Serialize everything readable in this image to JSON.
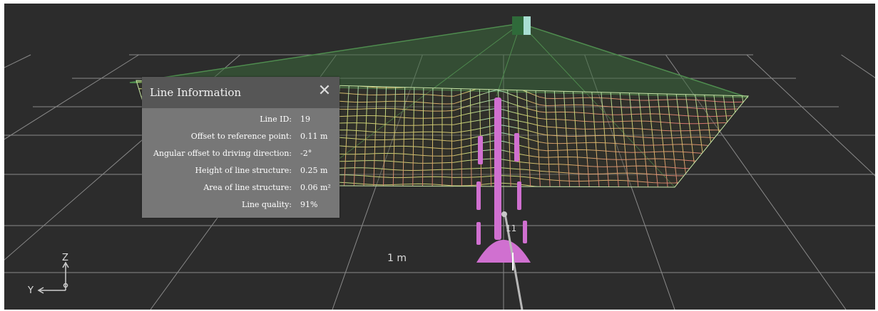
{
  "panel": {
    "title": "Line Information",
    "close_symbol": "✕",
    "rows": [
      {
        "label": "Line ID:",
        "value": "19"
      },
      {
        "label": "Offset to reference point:",
        "value": "0.11 m"
      },
      {
        "label": "Angular offset to driving direction:",
        "value": "-2°"
      },
      {
        "label": "Height of line structure:",
        "value": "0.25 m"
      },
      {
        "label": "Area of line structure:",
        "value": "0.06 m²"
      },
      {
        "label": "Line quality:",
        "value": "91%"
      }
    ]
  },
  "scene": {
    "scale_label": "1 m",
    "marker_label": "11",
    "axis_z": "Z",
    "axis_y": "Y"
  },
  "colors": {
    "background": "#2c2c2c",
    "grid": "#8a8a8a",
    "mesh_top": "#9be8c8",
    "mesh_mid": "#e8e070",
    "mesh_bottom": "#e87878",
    "frustum": "#5a9a5a",
    "structure": "#d070d0",
    "panel_header": "#565656",
    "panel_body": "#777777"
  }
}
